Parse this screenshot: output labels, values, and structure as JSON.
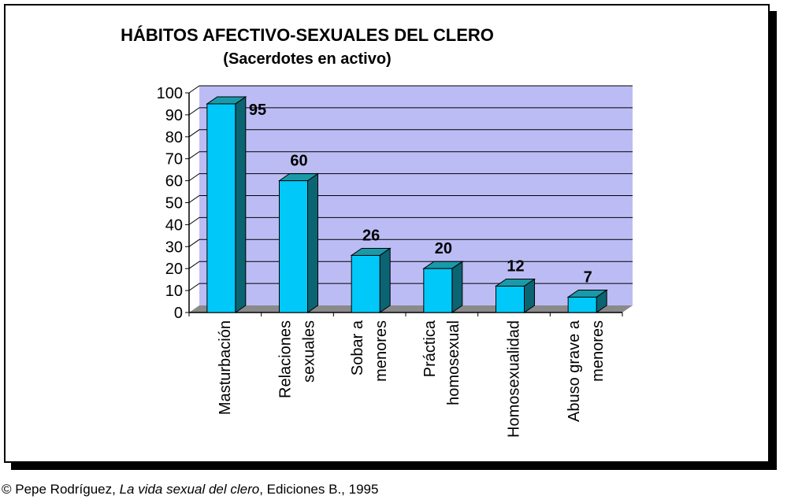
{
  "chart_data": {
    "type": "bar",
    "title": "HÁBITOS AFECTIVO-SEXUALES DEL CLERO",
    "subtitle": "(Sacerdotes en activo)",
    "categories": [
      [
        "Masturbación"
      ],
      [
        "Relaciones",
        "sexuales"
      ],
      [
        "Sobar a",
        "menores"
      ],
      [
        "Práctica",
        "homosexual"
      ],
      [
        "Homosexualidad"
      ],
      [
        "Abuso grave a",
        "menores"
      ]
    ],
    "values": [
      95,
      60,
      26,
      20,
      12,
      7
    ],
    "yticks": [
      "0",
      "10",
      "20",
      "30",
      "40",
      "50",
      "60",
      "70",
      "80",
      "90",
      "100"
    ],
    "ylim": [
      0,
      100
    ],
    "grid": true,
    "legend": "none",
    "colors": {
      "plot_background": "#bcbcf5",
      "floor": "#8a8a8a",
      "bar_front": "#00c8f8",
      "bar_top": "#1a9aa8",
      "bar_side": "#0b6472",
      "frame": "#000000"
    }
  },
  "caption": {
    "prefix": "© Pepe Rodríguez, ",
    "book": "La vida sexual del clero",
    "suffix": ", Ediciones B., 1995"
  }
}
